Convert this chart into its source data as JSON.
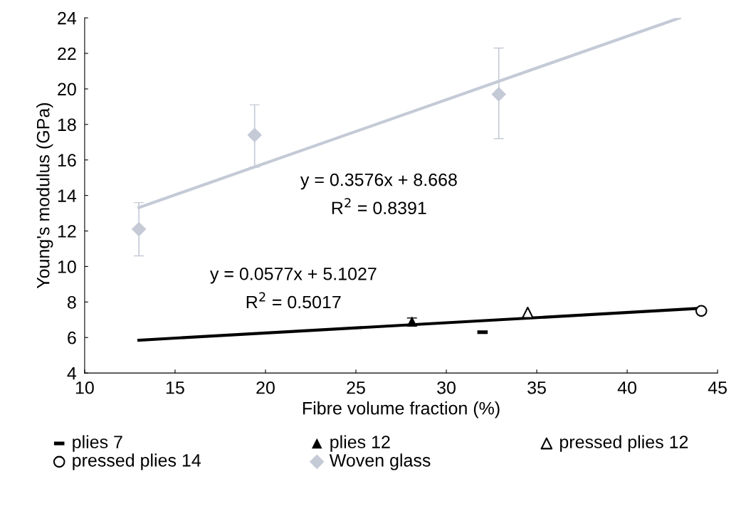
{
  "chart_data": {
    "type": "scatter",
    "xlabel": "Fibre volume fraction (%)",
    "ylabel": "Young's modulus (GPa)",
    "xlim": [
      10,
      45
    ],
    "xticks": [
      10,
      15,
      20,
      25,
      30,
      35,
      40,
      45
    ],
    "ylim": [
      4,
      24
    ],
    "yticks": [
      4,
      6,
      8,
      10,
      12,
      14,
      16,
      18,
      20,
      22,
      24
    ],
    "grid": false,
    "legend": "bottom",
    "series": [
      {
        "name": "plies 7",
        "color": "#000000",
        "marker": "square",
        "x": [
          32
        ],
        "values": [
          6.3
        ]
      },
      {
        "name": "plies 12",
        "color": "#000000",
        "marker": "triangle",
        "x": [
          28.1
        ],
        "values": [
          6.9
        ],
        "errors": [
          [
            6.7,
            7.1
          ]
        ]
      },
      {
        "name": "pressed plies 12",
        "color": "#000000",
        "marker": "triangle-open",
        "x": [
          34.5
        ],
        "values": [
          7.4
        ]
      },
      {
        "name": "pressed plies 14",
        "color": "#000000",
        "marker": "circle-open",
        "x": [
          44.1
        ],
        "values": [
          7.5
        ]
      },
      {
        "name": "Woven glass",
        "color": "#c4cad6",
        "marker": "diamond",
        "x": [
          13,
          19.4,
          32.9
        ],
        "values": [
          12.1,
          17.4,
          19.7
        ],
        "errors": [
          [
            10.6,
            13.6
          ],
          [
            15.6,
            19.1
          ],
          [
            17.2,
            22.3
          ]
        ]
      },
      {
        "type": "line",
        "color": "#c4cad6",
        "marker": "none",
        "x": [
          13,
          42.9
        ],
        "values": [
          13.32,
          24.0
        ]
      },
      {
        "type": "line",
        "color": "#000000",
        "marker": "none",
        "x": [
          13,
          44
        ],
        "values": [
          5.85,
          7.64
        ]
      }
    ],
    "annotations": [
      "y = 0.3576x + 8.668",
      "R$^{2}$ = 0.8391",
      "y = 0.0577x + 5.1027",
      "R$^{2}$ = 0.5017"
    ]
  }
}
